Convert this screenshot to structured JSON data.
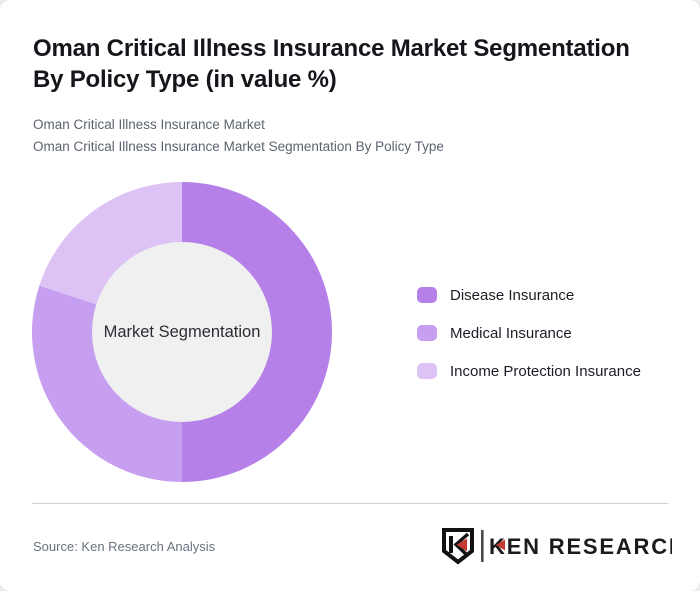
{
  "page": {
    "background_color": "#eceef0",
    "card_background_color": "#ffffff"
  },
  "header": {
    "title_lines": [
      "Oman Critical Illness Insurance Market Segmentation",
      "By Policy Type (in value %)"
    ],
    "subtitle_lines": [
      "Oman Critical Illness Insurance Market",
      "Oman Critical Illness Insurance Market Segmentation By Policy Type"
    ]
  },
  "chart_data": {
    "type": "pie",
    "variant": "donut",
    "title": "Oman Critical Illness Insurance Market Segmentation By Policy Type (in value %)",
    "center_label": "Market Segmentation",
    "categories": [
      "Disease Insurance",
      "Medical Insurance",
      "Income Protection Insurance"
    ],
    "values": [
      50,
      30,
      20
    ],
    "unit": "value %",
    "colors": [
      "#b581e9",
      "#c79ff0",
      "#ddc3f5"
    ],
    "hole_color": "#f0f0f0",
    "start_angle_deg": 0,
    "direction": "clockwise",
    "legend_position": "right"
  },
  "footer": {
    "source_label": "Source: Ken Research Analysis",
    "brand_text": "KEN RESEARCH",
    "brand_accent_color": "#c43b33",
    "divider_color": "#d0d0d0"
  }
}
